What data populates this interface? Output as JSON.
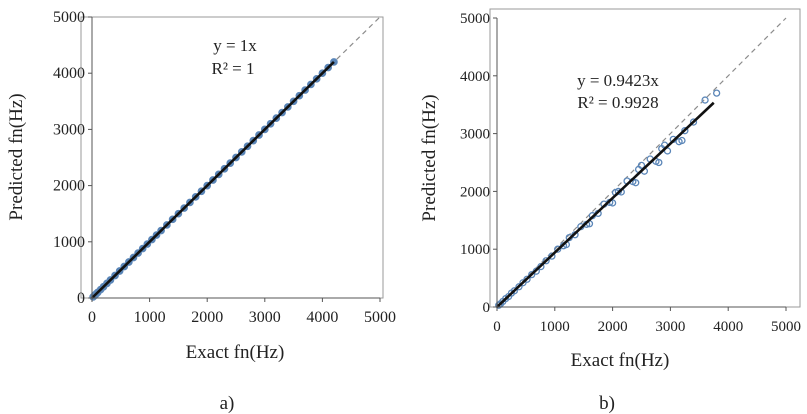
{
  "chart_data": [
    {
      "panel_label": "a)",
      "type": "scatter",
      "xlabel": "Exact fn(Hz)",
      "ylabel": "Predicted fn(Hz)",
      "xlim": [
        0,
        5000
      ],
      "ylim": [
        0,
        5000
      ],
      "x_ticks": [
        "0",
        "1000",
        "2000",
        "3000",
        "4000",
        "5000"
      ],
      "y_ticks": [
        "0",
        "1000",
        "2000",
        "3000",
        "4000",
        "5000"
      ],
      "grid": false,
      "marker_color": "#5b86b8",
      "trend_color": "#111111",
      "reference_color": "#8c8c8c",
      "equation": "y = 1x",
      "r_squared": "R² = 1",
      "trendline": {
        "slope": 1.0,
        "x_range": [
          0,
          4200
        ]
      },
      "reference_line": {
        "slope": 1.0,
        "dashed": true
      },
      "series": [
        {
          "x": [
            20,
            40,
            60,
            80,
            100,
            150,
            200,
            260,
            320,
            400,
            480,
            560,
            640,
            720,
            800,
            880,
            960,
            1040,
            1120,
            1200,
            1300,
            1400,
            1500,
            1600,
            1700,
            1800,
            1900,
            2000,
            2100,
            2200,
            2300,
            2400,
            2500,
            2600,
            2700,
            2800,
            2900,
            3000,
            3100,
            3200,
            3300,
            3400,
            3500,
            3600,
            3700,
            3800,
            3900,
            4000,
            4100,
            4200
          ],
          "y": [
            20,
            40,
            60,
            80,
            100,
            150,
            200,
            260,
            320,
            400,
            480,
            560,
            640,
            720,
            800,
            880,
            960,
            1040,
            1120,
            1200,
            1300,
            1400,
            1500,
            1600,
            1700,
            1800,
            1900,
            2000,
            2100,
            2200,
            2300,
            2400,
            2500,
            2600,
            2700,
            2800,
            2900,
            3000,
            3100,
            3200,
            3300,
            3400,
            3500,
            3600,
            3700,
            3800,
            3900,
            4000,
            4100,
            4200
          ]
        }
      ]
    },
    {
      "panel_label": "b)",
      "type": "scatter",
      "xlabel": "Exact fn(Hz)",
      "ylabel": "Predicted fn(Hz)",
      "xlim": [
        0,
        5000
      ],
      "ylim": [
        0,
        5000
      ],
      "x_ticks": [
        "0",
        "1000",
        "2000",
        "3000",
        "4000",
        "5000"
      ],
      "y_ticks": [
        "0",
        "1000",
        "2000",
        "3000",
        "4000",
        "5000"
      ],
      "grid": false,
      "marker_color": "#5b86b8",
      "trend_color": "#111111",
      "reference_color": "#8c8c8c",
      "equation": "y = 0.9423x",
      "r_squared": "R² = 0.9928",
      "trendline": {
        "slope": 0.9423,
        "x_range": [
          0,
          3750
        ]
      },
      "reference_line": {
        "slope": 1.0,
        "dashed": true
      },
      "series": [
        {
          "x": [
            30,
            60,
            100,
            150,
            200,
            250,
            300,
            380,
            450,
            520,
            600,
            680,
            760,
            850,
            950,
            1050,
            1150,
            1250,
            1350,
            1450,
            1550,
            1650,
            1750,
            1850,
            1950,
            2050,
            2150,
            2250,
            2350,
            2450,
            2550,
            2650,
            2750,
            2850,
            2950,
            3050,
            3150,
            3250,
            3400,
            3600,
            3800,
            1200,
            1600,
            2000,
            2400,
            2800,
            3200,
            2100,
            2500,
            2900
          ],
          "y": [
            30,
            55,
            95,
            145,
            180,
            240,
            280,
            350,
            420,
            480,
            560,
            620,
            700,
            800,
            880,
            1000,
            1060,
            1200,
            1250,
            1390,
            1430,
            1580,
            1620,
            1780,
            1810,
            1980,
            1990,
            2180,
            2170,
            2380,
            2350,
            2560,
            2520,
            2740,
            2700,
            2900,
            2860,
            3050,
            3200,
            3580,
            3700,
            1080,
            1440,
            1800,
            2150,
            2500,
            2880,
            2000,
            2450,
            2800
          ]
        }
      ]
    }
  ]
}
